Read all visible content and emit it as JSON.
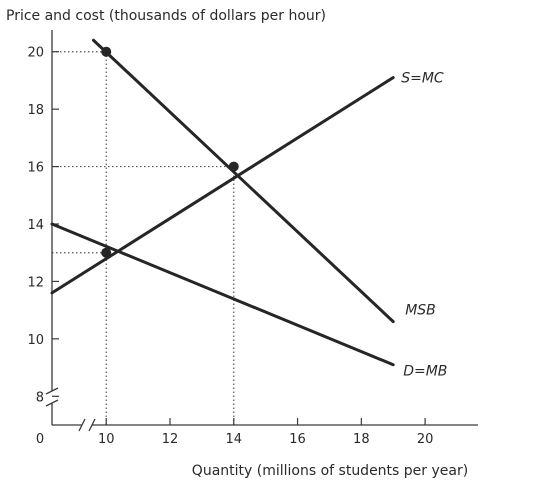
{
  "chart_data": {
    "type": "line",
    "title": "",
    "ylabel": "Price and cost (thousands of dollars per hour)",
    "xlabel": "Quantity (millions of students per year)",
    "origin_label": "0",
    "xlim": [
      8.3,
      21
    ],
    "ylim": [
      7,
      21
    ],
    "x_ticks": [
      10,
      12,
      14,
      16,
      18,
      20
    ],
    "y_ticks": [
      8,
      10,
      12,
      14,
      16,
      18,
      20
    ],
    "axis_breaks": true,
    "grid": false,
    "series": [
      {
        "name": "S=MC",
        "points": [
          [
            8.3,
            11.6
          ],
          [
            19,
            19.1
          ]
        ]
      },
      {
        "name": "MSB",
        "points": [
          [
            9.6,
            20.4
          ],
          [
            19,
            10.6
          ]
        ]
      },
      {
        "name": "D=MB",
        "points": [
          [
            8.3,
            14.0
          ],
          [
            19,
            9.1
          ]
        ]
      }
    ],
    "highlight_points": [
      [
        10,
        20
      ],
      [
        14,
        16
      ],
      [
        10,
        13
      ]
    ],
    "guide_lines": [
      {
        "from": [
          10,
          7
        ],
        "to": [
          10,
          20
        ]
      },
      {
        "from": [
          8.3,
          20
        ],
        "to": [
          10,
          20
        ]
      },
      {
        "from": [
          14,
          7
        ],
        "to": [
          14,
          16
        ]
      },
      {
        "from": [
          8.3,
          16
        ],
        "to": [
          14,
          16
        ]
      },
      {
        "from": [
          8.3,
          13
        ],
        "to": [
          10,
          13
        ]
      }
    ],
    "colors": {
      "line": "#262626",
      "axis": "#3a3a3a",
      "guide": "#555555"
    }
  }
}
